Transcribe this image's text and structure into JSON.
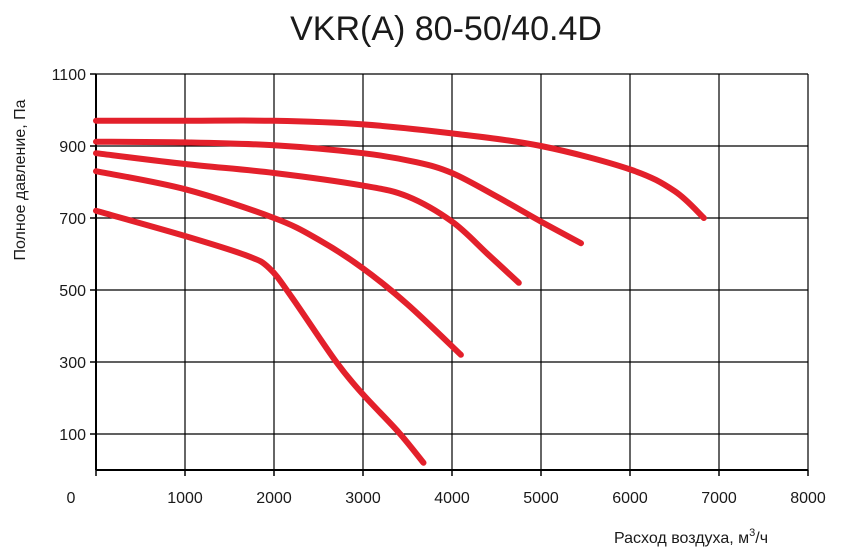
{
  "chart_data": {
    "type": "line",
    "title": "VKR(A) 80-50/40.4D",
    "xlabel": "Расход воздуха, м",
    "xlabel_sup": "3",
    "xlabel_suffix": "/ч",
    "ylabel": "Полное давление, Па",
    "xlim": [
      0,
      8000
    ],
    "ylim": [
      0,
      1100
    ],
    "x_ticks": [
      0,
      1000,
      2000,
      3000,
      4000,
      5000,
      6000,
      7000,
      8000
    ],
    "y_ticks": [
      100,
      300,
      500,
      700,
      900,
      1100
    ],
    "grid": true,
    "line_color": "#e3202b",
    "series": [
      {
        "values": [
          [
            0,
            970
          ],
          [
            1000,
            970
          ],
          [
            2000,
            970
          ],
          [
            3000,
            960
          ],
          [
            4000,
            935
          ],
          [
            5000,
            900
          ],
          [
            6000,
            835
          ],
          [
            6500,
            775
          ],
          [
            6830,
            700
          ]
        ]
      },
      {
        "values": [
          [
            0,
            912
          ],
          [
            1000,
            910
          ],
          [
            2000,
            902
          ],
          [
            3000,
            880
          ],
          [
            3600,
            855
          ],
          [
            4000,
            825
          ],
          [
            4500,
            760
          ],
          [
            5000,
            690
          ],
          [
            5450,
            630
          ]
        ]
      },
      {
        "values": [
          [
            0,
            880
          ],
          [
            1000,
            850
          ],
          [
            2000,
            825
          ],
          [
            3000,
            790
          ],
          [
            3500,
            760
          ],
          [
            4000,
            690
          ],
          [
            4400,
            600
          ],
          [
            4750,
            520
          ]
        ]
      },
      {
        "values": [
          [
            0,
            830
          ],
          [
            1000,
            780
          ],
          [
            2000,
            700
          ],
          [
            2500,
            640
          ],
          [
            3000,
            560
          ],
          [
            3500,
            460
          ],
          [
            4100,
            320
          ]
        ]
      },
      {
        "values": [
          [
            0,
            720
          ],
          [
            1000,
            650
          ],
          [
            1700,
            595
          ],
          [
            1950,
            560
          ],
          [
            2200,
            480
          ],
          [
            2700,
            300
          ],
          [
            3000,
            210
          ],
          [
            3400,
            105
          ],
          [
            3680,
            20
          ]
        ]
      }
    ]
  }
}
